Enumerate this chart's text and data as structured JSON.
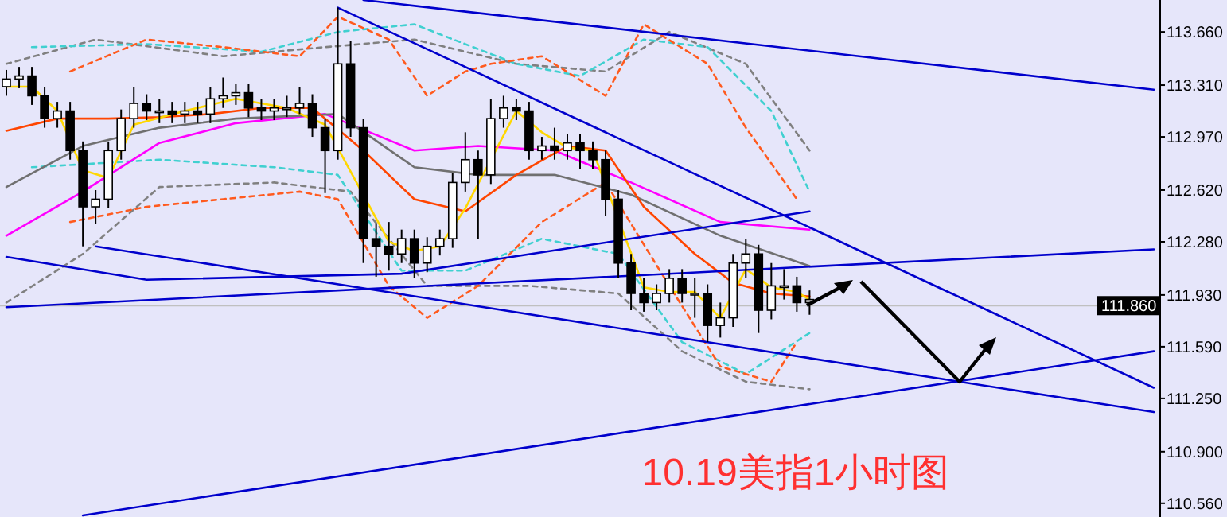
{
  "chart_data": {
    "type": "candlestick",
    "title": "10.19美指1小时图",
    "tick_labels": "y",
    "ylim": [
      110.47,
      113.87
    ],
    "yticks": [
      {
        "value": 113.66,
        "label": "113.660"
      },
      {
        "value": 113.31,
        "label": "113.310"
      },
      {
        "value": 112.97,
        "label": "112.970"
      },
      {
        "value": 112.62,
        "label": "112.620"
      },
      {
        "value": 112.28,
        "label": "112.280"
      },
      {
        "value": 111.93,
        "label": "111.930"
      },
      {
        "value": 111.59,
        "label": "111.590"
      },
      {
        "value": 111.25,
        "label": "111.250"
      },
      {
        "value": 110.9,
        "label": "110.900"
      },
      {
        "value": 110.56,
        "label": "110.560"
      }
    ],
    "categories": [
      null,
      null,
      null,
      null,
      null,
      null,
      null,
      null,
      null,
      null,
      null,
      null,
      null,
      null,
      null,
      null,
      null,
      null,
      null,
      null,
      null,
      null,
      null,
      null,
      null,
      null,
      null,
      null,
      null,
      null,
      null,
      null,
      null,
      null,
      null,
      null,
      null,
      null,
      null,
      null,
      null,
      null,
      null,
      null,
      null,
      null,
      null,
      null,
      null,
      null,
      null,
      null,
      null,
      null,
      null,
      null,
      null,
      null,
      null,
      null,
      null,
      null,
      null,
      null,
      null,
      null,
      null,
      null,
      null,
      null,
      null,
      null,
      null,
      null,
      null,
      null,
      null,
      null,
      null,
      null,
      null,
      null,
      null,
      null,
      null,
      null,
      null,
      null,
      null,
      null,
      null
    ],
    "ohlc": [
      [
        113.3,
        113.41,
        113.24,
        113.35
      ],
      [
        113.35,
        113.43,
        113.29,
        113.37
      ],
      [
        113.37,
        113.43,
        113.18,
        113.24
      ],
      [
        113.24,
        113.3,
        113.03,
        113.09
      ],
      [
        113.09,
        113.2,
        113.03,
        113.14
      ],
      [
        113.14,
        113.2,
        112.82,
        112.88
      ],
      [
        112.88,
        112.94,
        112.25,
        112.51
      ],
      [
        112.51,
        112.62,
        112.4,
        112.56
      ],
      [
        112.56,
        112.94,
        112.5,
        112.88
      ],
      [
        112.88,
        113.15,
        112.82,
        113.09
      ],
      [
        113.09,
        113.3,
        113.03,
        113.19
      ],
      [
        113.19,
        113.25,
        113.08,
        113.14
      ],
      [
        113.14,
        113.22,
        113.06,
        113.14
      ],
      [
        113.14,
        113.2,
        113.06,
        113.12
      ],
      [
        113.12,
        113.2,
        113.06,
        113.14
      ],
      [
        113.14,
        113.2,
        113.06,
        113.12
      ],
      [
        113.12,
        113.3,
        113.06,
        113.22
      ],
      [
        113.22,
        113.36,
        113.16,
        113.24
      ],
      [
        113.24,
        113.32,
        113.18,
        113.26
      ],
      [
        113.26,
        113.32,
        113.1,
        113.16
      ],
      [
        113.16,
        113.22,
        113.08,
        113.14
      ],
      [
        113.14,
        113.22,
        113.08,
        113.16
      ],
      [
        113.16,
        113.24,
        113.1,
        113.16
      ],
      [
        113.16,
        113.3,
        113.12,
        113.19
      ],
      [
        113.19,
        113.25,
        112.97,
        113.03
      ],
      [
        113.03,
        113.09,
        112.6,
        112.88
      ],
      [
        112.88,
        113.82,
        112.82,
        113.45
      ],
      [
        113.45,
        113.6,
        112.97,
        113.03
      ],
      [
        113.03,
        113.09,
        112.14,
        112.3
      ],
      [
        112.3,
        112.4,
        112.05,
        112.25
      ],
      [
        112.25,
        112.41,
        112.09,
        112.2
      ],
      [
        112.2,
        112.36,
        112.14,
        112.3
      ],
      [
        112.3,
        112.36,
        112.04,
        112.14
      ],
      [
        112.14,
        112.31,
        112.08,
        112.25
      ],
      [
        112.25,
        112.36,
        112.19,
        112.3
      ],
      [
        112.3,
        112.73,
        112.24,
        112.67
      ],
      [
        112.67,
        113.0,
        112.61,
        112.82
      ],
      [
        112.82,
        112.88,
        112.3,
        112.72
      ],
      [
        112.72,
        113.22,
        112.66,
        113.09
      ],
      [
        113.09,
        113.24,
        113.03,
        113.16
      ],
      [
        113.16,
        113.22,
        113.08,
        113.14
      ],
      [
        113.14,
        113.2,
        112.82,
        112.88
      ],
      [
        112.88,
        112.97,
        112.82,
        112.91
      ],
      [
        112.91,
        113.03,
        112.82,
        112.88
      ],
      [
        112.88,
        112.99,
        112.82,
        112.93
      ],
      [
        112.93,
        112.99,
        112.76,
        112.88
      ],
      [
        112.88,
        112.94,
        112.76,
        112.82
      ],
      [
        112.82,
        112.88,
        112.45,
        112.56
      ],
      [
        112.56,
        112.62,
        112.04,
        112.14
      ],
      [
        112.14,
        112.2,
        111.83,
        111.94
      ],
      [
        111.94,
        112.04,
        111.82,
        111.88
      ],
      [
        111.88,
        112.0,
        111.83,
        111.94
      ],
      [
        111.94,
        112.1,
        111.88,
        112.04
      ],
      [
        112.04,
        112.1,
        111.88,
        111.94
      ],
      [
        111.94,
        112.04,
        111.78,
        111.94
      ],
      [
        111.94,
        112.0,
        111.62,
        111.73
      ],
      [
        111.73,
        111.88,
        111.65,
        111.78
      ],
      [
        111.78,
        112.2,
        111.72,
        112.14
      ],
      [
        112.14,
        112.3,
        112.04,
        112.2
      ],
      [
        112.2,
        112.26,
        111.68,
        111.83
      ],
      [
        111.83,
        112.14,
        111.77,
        111.99
      ],
      [
        111.99,
        112.1,
        111.9,
        111.99
      ],
      [
        111.99,
        112.05,
        111.82,
        111.88
      ],
      [
        111.88,
        111.96,
        111.8,
        111.9
      ],
      null,
      null,
      null,
      null,
      null,
      null,
      null,
      null,
      null,
      null,
      null,
      null,
      null,
      null,
      null,
      null,
      null,
      null,
      null,
      null,
      null,
      null,
      null,
      null,
      null,
      null,
      null
    ],
    "series": [
      {
        "type": "line",
        "color": "#808080",
        "line_style": "dashed",
        "values": [
          113.45,
          null,
          null,
          null,
          null,
          null,
          null,
          113.61,
          null,
          null,
          null,
          null,
          null,
          null,
          null,
          null,
          null,
          113.5,
          null,
          null,
          null,
          null,
          null,
          null,
          null,
          113.56,
          null,
          null,
          null,
          null,
          null,
          null,
          113.61,
          null,
          null,
          null,
          null,
          null,
          null,
          null,
          113.45,
          null,
          null,
          null,
          null,
          null,
          null,
          113.4,
          null,
          null,
          null,
          null,
          113.66,
          null,
          null,
          null,
          null,
          null,
          113.45,
          null,
          null,
          null,
          null,
          112.88,
          null,
          null,
          null,
          null,
          null,
          null,
          null,
          null,
          null,
          null,
          null,
          null,
          null,
          null,
          null,
          null,
          null,
          null,
          null,
          null,
          null,
          null,
          null,
          null,
          null,
          null,
          null
        ]
      },
      {
        "type": "line",
        "color": "#808080",
        "line_style": "dashed",
        "values": [
          111.88,
          null,
          null,
          null,
          null,
          null,
          112.2,
          null,
          null,
          null,
          null,
          null,
          112.64,
          null,
          null,
          null,
          null,
          null,
          null,
          null,
          null,
          112.67,
          null,
          null,
          null,
          null,
          null,
          112.61,
          null,
          null,
          null,
          null,
          null,
          111.99,
          null,
          null,
          null,
          null,
          null,
          null,
          null,
          111.99,
          null,
          null,
          null,
          null,
          null,
          null,
          111.94,
          null,
          null,
          null,
          null,
          111.56,
          null,
          null,
          null,
          null,
          111.36,
          null,
          null,
          null,
          null,
          111.31,
          null,
          null,
          null,
          null,
          null,
          null,
          null,
          null,
          null,
          null,
          null,
          null,
          null,
          null,
          null,
          null,
          null,
          null,
          null,
          null,
          null,
          null,
          null,
          null,
          null,
          null,
          null
        ]
      },
      {
        "type": "line",
        "color": "#40d0d0",
        "line_style": "dashed",
        "values": [
          null,
          null,
          113.56,
          null,
          null,
          null,
          null,
          null,
          null,
          null,
          null,
          113.58,
          null,
          null,
          null,
          null,
          null,
          null,
          null,
          null,
          113.53,
          null,
          null,
          null,
          null,
          null,
          113.66,
          null,
          null,
          null,
          null,
          null,
          113.71,
          null,
          null,
          null,
          null,
          null,
          null,
          null,
          113.45,
          null,
          null,
          null,
          null,
          113.37,
          null,
          null,
          null,
          null,
          113.61,
          null,
          null,
          null,
          null,
          113.56,
          null,
          null,
          null,
          null,
          113.14,
          null,
          null,
          112.61,
          null,
          null,
          null,
          null,
          null,
          null,
          null,
          null,
          null,
          null,
          null,
          null,
          null,
          null,
          null,
          null,
          null,
          null,
          null,
          null,
          null,
          null,
          null,
          null,
          null,
          null,
          null
        ]
      },
      {
        "type": "line",
        "color": "#40d0d0",
        "line_style": "dashed",
        "values": [
          null,
          null,
          112.77,
          null,
          null,
          null,
          null,
          null,
          null,
          null,
          null,
          null,
          112.82,
          null,
          null,
          null,
          null,
          null,
          null,
          null,
          null,
          112.77,
          null,
          null,
          null,
          null,
          112.72,
          null,
          null,
          null,
          null,
          112.09,
          null,
          null,
          null,
          null,
          112.09,
          null,
          null,
          null,
          null,
          null,
          112.3,
          null,
          null,
          null,
          null,
          null,
          112.2,
          null,
          null,
          null,
          null,
          111.62,
          null,
          null,
          null,
          null,
          111.41,
          null,
          null,
          null,
          null,
          111.68,
          null,
          null,
          null,
          null,
          null,
          null,
          null,
          null,
          null,
          null,
          null,
          null,
          null,
          null,
          null,
          null,
          null,
          null,
          null,
          null,
          null,
          null,
          null,
          null,
          null,
          null,
          null
        ]
      },
      {
        "type": "line",
        "color": "#ff5a1e",
        "line_style": "dashed",
        "values": [
          null,
          null,
          null,
          null,
          null,
          113.4,
          null,
          null,
          null,
          null,
          null,
          113.61,
          null,
          null,
          null,
          null,
          null,
          113.56,
          null,
          null,
          null,
          null,
          null,
          113.5,
          null,
          null,
          113.76,
          null,
          null,
          null,
          113.61,
          null,
          null,
          113.24,
          null,
          null,
          113.4,
          null,
          113.45,
          null,
          null,
          null,
          113.5,
          null,
          null,
          null,
          null,
          113.24,
          null,
          null,
          113.71,
          null,
          null,
          null,
          null,
          113.45,
          null,
          null,
          113.03,
          null,
          null,
          null,
          112.56,
          null,
          null,
          null,
          null,
          null,
          null,
          null,
          null,
          null,
          null,
          null,
          null,
          null,
          null,
          null,
          null,
          null,
          null,
          null,
          null,
          null,
          null,
          null,
          null,
          null,
          null,
          null,
          null
        ]
      },
      {
        "type": "line",
        "color": "#ff5a1e",
        "line_style": "dashed",
        "values": [
          null,
          null,
          null,
          null,
          null,
          112.41,
          null,
          null,
          null,
          null,
          null,
          112.51,
          null,
          null,
          null,
          null,
          null,
          112.56,
          null,
          null,
          null,
          null,
          null,
          112.61,
          null,
          null,
          112.56,
          null,
          null,
          null,
          111.99,
          null,
          null,
          111.78,
          null,
          null,
          null,
          111.99,
          null,
          null,
          null,
          null,
          112.41,
          null,
          null,
          null,
          null,
          112.67,
          null,
          null,
          null,
          null,
          111.99,
          null,
          null,
          null,
          111.46,
          null,
          null,
          null,
          111.36,
          null,
          111.62,
          null,
          null,
          null,
          null,
          null,
          null,
          null,
          null,
          null,
          null,
          null,
          null,
          null,
          null,
          null,
          null,
          null,
          null,
          null,
          null,
          null,
          null,
          null,
          null,
          null,
          null,
          null,
          null
        ]
      },
      {
        "type": "line",
        "color": "#ff00ff",
        "line_style": "solid",
        "values": [
          112.32,
          null,
          null,
          null,
          null,
          null,
          112.61,
          null,
          null,
          null,
          null,
          null,
          112.93,
          null,
          null,
          null,
          null,
          null,
          113.06,
          null,
          null,
          null,
          null,
          null,
          null,
          113.12,
          null,
          null,
          null,
          null,
          null,
          null,
          112.88,
          null,
          null,
          null,
          null,
          112.91,
          null,
          null,
          null,
          null,
          null,
          112.88,
          null,
          null,
          null,
          null,
          null,
          112.67,
          null,
          null,
          null,
          null,
          null,
          null,
          112.41,
          null,
          null,
          null,
          null,
          null,
          null,
          112.36,
          null,
          null,
          null,
          null,
          null,
          null,
          null,
          null,
          null,
          null,
          null,
          null,
          null,
          null,
          null,
          null,
          null,
          null,
          null,
          null,
          null,
          null,
          null,
          null,
          null,
          null,
          null
        ]
      },
      {
        "type": "line",
        "color": "#707070",
        "line_style": "solid",
        "values": [
          112.64,
          null,
          null,
          null,
          null,
          null,
          112.91,
          null,
          null,
          null,
          null,
          null,
          113.03,
          null,
          null,
          null,
          null,
          null,
          113.09,
          null,
          null,
          null,
          null,
          null,
          null,
          null,
          113.12,
          null,
          null,
          null,
          null,
          null,
          112.77,
          null,
          null,
          null,
          null,
          112.72,
          null,
          null,
          null,
          null,
          null,
          112.72,
          null,
          null,
          null,
          null,
          null,
          112.59,
          null,
          null,
          null,
          null,
          null,
          null,
          112.32,
          null,
          null,
          null,
          null,
          null,
          null,
          112.12,
          null,
          null,
          null,
          null,
          null,
          null,
          null,
          null,
          null,
          null,
          null,
          null,
          null,
          null,
          null,
          null,
          null,
          null,
          null,
          null,
          null,
          null,
          null,
          null,
          null,
          null,
          null
        ]
      },
      {
        "type": "line",
        "color": "#ff4500",
        "line_style": "solid",
        "values": [
          113.01,
          null,
          null,
          null,
          113.09,
          null,
          null,
          null,
          113.09,
          null,
          null,
          null,
          113.1,
          null,
          null,
          null,
          113.12,
          null,
          null,
          null,
          113.16,
          null,
          null,
          null,
          113.16,
          null,
          null,
          null,
          112.88,
          null,
          null,
          null,
          112.56,
          null,
          null,
          null,
          112.48,
          null,
          null,
          null,
          112.72,
          null,
          null,
          null,
          112.91,
          null,
          null,
          112.88,
          null,
          null,
          112.51,
          null,
          null,
          null,
          112.2,
          null,
          null,
          112.01,
          null,
          null,
          111.94,
          null,
          null,
          111.92,
          null,
          null,
          null,
          null,
          null,
          null,
          null,
          null,
          null,
          null,
          null,
          null,
          null,
          null,
          null,
          null,
          null,
          null,
          null,
          null,
          null,
          null,
          null,
          null,
          null,
          null,
          null
        ]
      },
      {
        "type": "line",
        "color": "#ffd700",
        "line_style": "solid",
        "values": [
          113.3,
          null,
          113.3,
          null,
          113.14,
          null,
          112.75,
          null,
          112.7,
          null,
          113.05,
          null,
          null,
          null,
          113.14,
          null,
          null,
          null,
          113.22,
          null,
          null,
          null,
          113.16,
          null,
          null,
          113.05,
          null,
          null,
          null,
          null,
          112.28,
          null,
          112.22,
          null,
          112.25,
          null,
          112.5,
          null,
          null,
          null,
          113.14,
          null,
          113.0,
          null,
          112.9,
          null,
          112.88,
          null,
          null,
          null,
          111.98,
          null,
          111.95,
          null,
          111.95,
          null,
          111.78,
          null,
          112.1,
          null,
          111.98,
          null,
          111.95,
          111.9,
          null,
          null,
          null,
          null,
          null,
          null,
          null,
          null,
          null,
          null,
          null,
          null,
          null,
          null,
          null,
          null,
          null,
          null,
          null,
          null,
          null,
          null,
          null,
          null,
          null,
          null,
          null
        ]
      },
      {
        "type": "line",
        "color": "#0000cc",
        "line_style": "solid",
        "values": [
          null,
          null,
          null,
          null,
          null,
          null,
          null,
          null,
          null,
          null,
          null,
          null,
          null,
          null,
          null,
          null,
          null,
          null,
          null,
          null,
          null,
          null,
          null,
          null,
          null,
          null,
          null,
          null,
          113.87,
          null,
          null,
          null,
          null,
          null,
          null,
          null,
          null,
          null,
          null,
          null,
          null,
          null,
          null,
          null,
          null,
          null,
          null,
          null,
          null,
          null,
          null,
          null,
          null,
          null,
          null,
          null,
          null,
          null,
          null,
          null,
          null,
          null,
          null,
          null,
          null,
          null,
          null,
          null,
          null,
          null,
          null,
          null,
          null,
          null,
          null,
          null,
          null,
          null,
          null,
          null,
          null,
          null,
          null,
          null,
          null,
          null,
          null,
          null,
          null,
          null,
          113.28
        ]
      },
      {
        "type": "line",
        "color": "#0000cc",
        "line_style": "solid",
        "values": [
          null,
          null,
          null,
          null,
          null,
          null,
          null,
          null,
          null,
          null,
          null,
          null,
          null,
          null,
          null,
          null,
          null,
          null,
          null,
          null,
          null,
          null,
          null,
          null,
          null,
          null,
          113.82,
          null,
          null,
          null,
          null,
          null,
          null,
          null,
          null,
          null,
          null,
          null,
          null,
          null,
          null,
          null,
          null,
          null,
          null,
          null,
          null,
          null,
          null,
          null,
          null,
          null,
          null,
          null,
          null,
          null,
          null,
          null,
          null,
          null,
          null,
          null,
          null,
          null,
          null,
          null,
          null,
          null,
          null,
          null,
          null,
          null,
          null,
          null,
          null,
          null,
          null,
          null,
          null,
          null,
          null,
          null,
          null,
          null,
          null,
          null,
          null,
          null,
          null,
          null,
          111.32
        ]
      },
      {
        "type": "line",
        "color": "#0000cc",
        "line_style": "solid",
        "values": [
          null,
          null,
          null,
          null,
          null,
          null,
          null,
          112.25,
          null,
          null,
          null,
          null,
          null,
          null,
          null,
          null,
          null,
          null,
          null,
          null,
          null,
          null,
          null,
          null,
          null,
          null,
          null,
          null,
          null,
          null,
          null,
          null,
          null,
          null,
          null,
          null,
          null,
          null,
          null,
          null,
          null,
          null,
          null,
          null,
          null,
          null,
          null,
          null,
          null,
          null,
          null,
          null,
          null,
          null,
          null,
          null,
          null,
          null,
          null,
          null,
          null,
          null,
          null,
          null,
          null,
          null,
          null,
          null,
          null,
          null,
          null,
          null,
          null,
          null,
          null,
          null,
          null,
          null,
          null,
          null,
          null,
          null,
          null,
          null,
          null,
          null,
          null,
          null,
          null,
          null,
          111.16
        ]
      },
      {
        "type": "line",
        "color": "#0000cc",
        "line_style": "solid",
        "values": [
          null,
          null,
          null,
          null,
          null,
          null,
          110.48,
          null,
          null,
          null,
          null,
          null,
          null,
          null,
          null,
          null,
          null,
          null,
          null,
          null,
          null,
          null,
          null,
          null,
          null,
          null,
          null,
          null,
          null,
          null,
          null,
          null,
          null,
          null,
          null,
          null,
          null,
          null,
          null,
          null,
          null,
          null,
          null,
          null,
          null,
          null,
          null,
          null,
          null,
          null,
          null,
          null,
          null,
          null,
          null,
          null,
          null,
          null,
          null,
          null,
          null,
          null,
          null,
          null,
          null,
          null,
          null,
          null,
          null,
          null,
          null,
          null,
          null,
          null,
          null,
          null,
          null,
          null,
          null,
          null,
          null,
          null,
          null,
          null,
          null,
          null,
          null,
          null,
          null,
          null,
          111.56
        ]
      },
      {
        "type": "line",
        "color": "#0000cc",
        "line_style": "solid",
        "values": [
          112.18,
          null,
          null,
          null,
          null,
          null,
          null,
          null,
          null,
          null,
          null,
          112.03,
          null,
          null,
          null,
          null,
          null,
          null,
          null,
          null,
          null,
          null,
          null,
          null,
          null,
          null,
          null,
          null,
          null,
          null,
          null,
          112.07,
          null,
          null,
          null,
          null,
          null,
          null,
          null,
          null,
          null,
          null,
          null,
          null,
          null,
          null,
          null,
          null,
          null,
          null,
          null,
          null,
          null,
          null,
          null,
          null,
          null,
          null,
          null,
          null,
          null,
          null,
          null,
          112.48,
          null,
          null,
          null,
          null,
          null,
          null,
          null,
          null,
          null,
          null,
          null,
          null,
          null,
          null,
          null,
          null,
          null,
          null,
          null,
          null,
          null,
          null,
          null,
          null,
          null,
          null,
          null
        ]
      },
      {
        "type": "line",
        "color": "#0000cc",
        "line_style": "solid",
        "values": [
          111.85,
          null,
          null,
          null,
          null,
          null,
          null,
          null,
          null,
          null,
          null,
          null,
          null,
          null,
          null,
          null,
          null,
          null,
          null,
          null,
          null,
          null,
          null,
          null,
          null,
          null,
          null,
          null,
          null,
          null,
          null,
          null,
          null,
          null,
          null,
          null,
          null,
          null,
          null,
          null,
          null,
          null,
          null,
          null,
          null,
          null,
          null,
          null,
          null,
          null,
          null,
          null,
          null,
          null,
          null,
          null,
          null,
          null,
          null,
          null,
          null,
          null,
          null,
          null,
          null,
          null,
          null,
          null,
          null,
          null,
          null,
          null,
          null,
          null,
          null,
          null,
          null,
          null,
          null,
          null,
          null,
          null,
          null,
          null,
          null,
          null,
          null,
          null,
          null,
          null,
          112.23
        ]
      }
    ],
    "ref_lines": [
      {
        "axis": "y",
        "value": 111.86,
        "label": "111.860",
        "color": "#c0c0c0"
      }
    ]
  }
}
